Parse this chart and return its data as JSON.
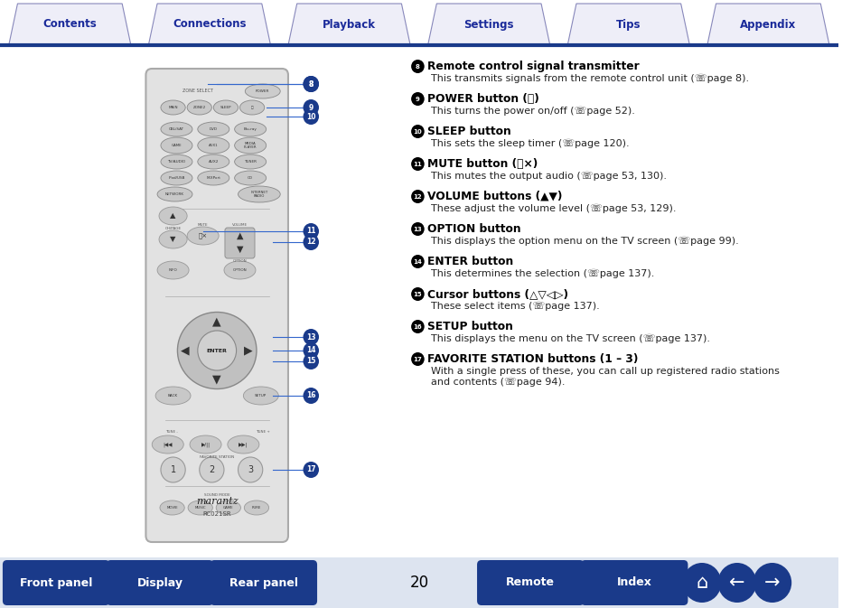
{
  "tab_labels": [
    "Contents",
    "Connections",
    "Playback",
    "Settings",
    "Tips",
    "Appendix"
  ],
  "page_number": "20",
  "bg_color": "#ffffff",
  "sections": [
    {
      "num": "8",
      "title": "Remote control signal transmitter",
      "body": "This transmits signals from the remote control unit (☏page 8)."
    },
    {
      "num": "9",
      "title": "POWER button (⏻)",
      "body": "This turns the power on/off (☏page 52)."
    },
    {
      "num": "10",
      "title": "SLEEP button",
      "body": "This sets the sleep timer (☏page 120)."
    },
    {
      "num": "11",
      "title": "MUTE button (🔇×)",
      "body": "This mutes the output audio (☏page 53, 130)."
    },
    {
      "num": "12",
      "title": "VOLUME buttons (▲▼)",
      "body": "These adjust the volume level (☏page 53, 129)."
    },
    {
      "num": "13",
      "title": "OPTION button",
      "body": "This displays the option menu on the TV screen (☏page 99)."
    },
    {
      "num": "14",
      "title": "ENTER button",
      "body": "This determines the selection (☏page 137)."
    },
    {
      "num": "15",
      "title": "Cursor buttons (△▽◁▷)",
      "body": "These select items (☏page 137)."
    },
    {
      "num": "16",
      "title": "SETUP button",
      "body": "This displays the menu on the TV screen (☏page 137)."
    },
    {
      "num": "17",
      "title": "FAVORITE STATION buttons (1 – 3)",
      "body": "With a single press of these, you can call up registered radio stations\nand contents (☏page 94)."
    }
  ],
  "tab_text_color": "#1a2a9a",
  "tab_bg": "#eeeef8",
  "tab_border": "#8888bb",
  "nav_dark": "#1a3a8a",
  "bottom_left_btns": [
    "Front panel",
    "Display",
    "Rear panel"
  ],
  "bottom_right_btns": [
    "Remote",
    "Index"
  ],
  "remote_body_color": "#e8e8e8",
  "remote_border_color": "#aaaaaa",
  "callout_color": "#1a3a8a",
  "line_color": "#3366cc"
}
